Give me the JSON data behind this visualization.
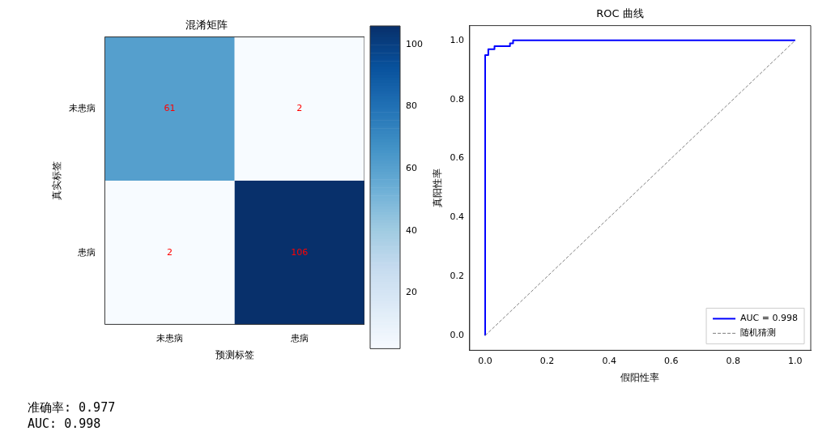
{
  "chart_data": [
    {
      "type": "heatmap",
      "title": "混淆矩阵",
      "xlabel": "预测标签",
      "ylabel": "真实标签",
      "categories": [
        "未患病",
        "患病"
      ],
      "y_categories": [
        "未患病",
        "患病"
      ],
      "cells": [
        [
          61,
          2
        ],
        [
          2,
          106
        ]
      ],
      "clim": [
        2,
        106
      ],
      "cticks": [
        20,
        40,
        60,
        80,
        100
      ],
      "data_labels": true,
      "annotations": [
        "准确率: 0.977",
        "AUC: 0.998"
      ]
    },
    {
      "type": "line",
      "title": "ROC 曲线",
      "xlabel": "假阳性率",
      "ylabel": "真阳性率",
      "series": [
        {
          "name": "AUC = 0.998",
          "color": "#0000ff",
          "x": [
            0,
            0,
            0.01,
            0.01,
            0.03,
            0.03,
            0.08,
            0.08,
            0.09,
            0.09,
            1
          ],
          "values": [
            0,
            0.95,
            0.95,
            0.97,
            0.97,
            0.98,
            0.98,
            0.99,
            0.99,
            1,
            1
          ]
        },
        {
          "name": "随机猜测",
          "color": "#808080",
          "line_style": "dashed",
          "x": [
            0,
            1
          ],
          "values": [
            0,
            1
          ]
        }
      ],
      "xlim": [
        -0.05,
        1.05
      ],
      "ylim": [
        -0.05,
        1.05
      ],
      "xticks": [
        {
          "value": 0,
          "label": "0.0"
        },
        0.2,
        0.4,
        0.6,
        0.8,
        {
          "value": 1,
          "label": "1.0"
        }
      ],
      "yticks": [
        {
          "value": 0,
          "label": "0.0"
        },
        0.2,
        0.4,
        0.6,
        0.8,
        {
          "value": 1,
          "label": "1.0"
        }
      ],
      "grid": false,
      "legend": "bottom right",
      "marker": "none"
    }
  ]
}
